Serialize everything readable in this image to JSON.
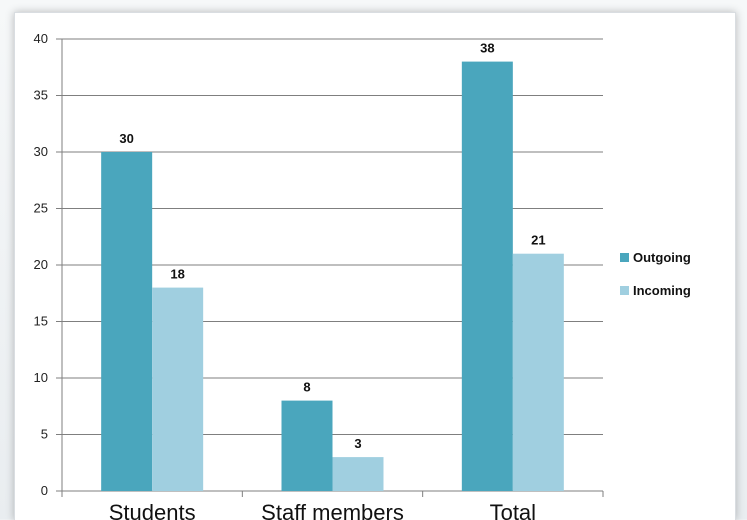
{
  "chart_data": {
    "type": "bar",
    "categories": [
      "Students",
      "Staff members",
      "Total"
    ],
    "series": [
      {
        "name": "Outgoing",
        "values": [
          30,
          8,
          38
        ],
        "color": "#4aa6bd"
      },
      {
        "name": "Incoming",
        "values": [
          18,
          3,
          21
        ],
        "color": "#a0cfe0"
      }
    ],
    "title": "",
    "xlabel": "",
    "ylabel": "",
    "ylim": [
      0,
      40
    ],
    "yticks": [
      0,
      5,
      10,
      15,
      20,
      25,
      30,
      35,
      40
    ],
    "grid": true,
    "legend_position": "right"
  }
}
